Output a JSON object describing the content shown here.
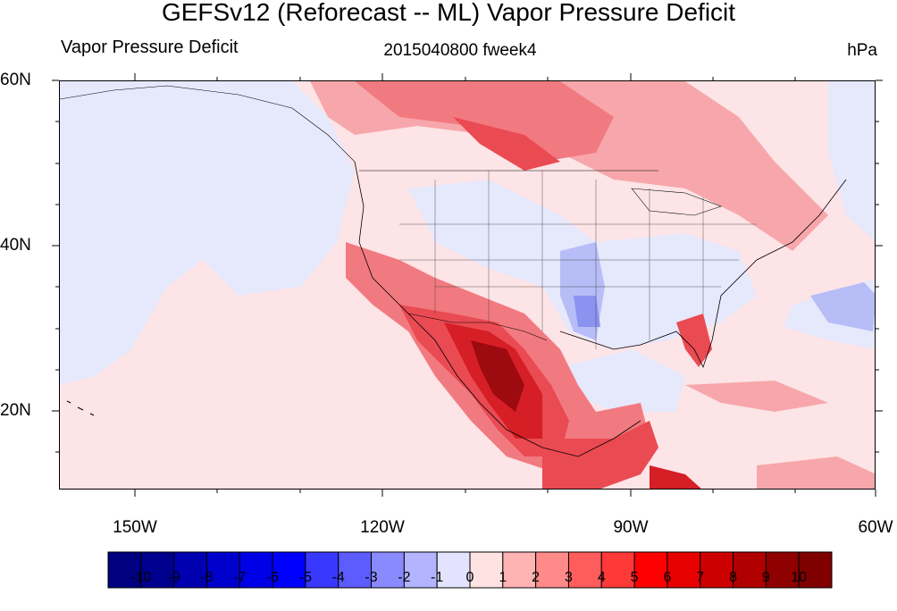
{
  "title": "GEFSv12 (Reforecast -- ML) Vapor Pressure Deficit",
  "subtitle_left": "Vapor Pressure Deficit",
  "subtitle_center": "2015040800 fweek4",
  "subtitle_right": "hPa",
  "lat_labels": [
    "60N",
    "40N",
    "20N"
  ],
  "lon_labels": [
    "150W",
    "120W",
    "90W",
    "60W"
  ],
  "colorbar": {
    "labels": [
      "-10",
      "-9",
      "-8",
      "-7",
      "-6",
      "-5",
      "-4",
      "-3",
      "-2",
      "-1",
      "0",
      "1",
      "2",
      "3",
      "4",
      "5",
      "6",
      "7",
      "8",
      "9",
      "10"
    ],
    "colors": [
      "#000080",
      "#00008f",
      "#0000b0",
      "#0000cc",
      "#0000e6",
      "#0000ff",
      "#3838ff",
      "#5c5cff",
      "#8a8aff",
      "#b3b3ff",
      "#e3e3ff",
      "#ffe3e3",
      "#ffb3b3",
      "#ff8a8a",
      "#ff5c5c",
      "#ff3838",
      "#ff0000",
      "#e60000",
      "#cc0000",
      "#b00000",
      "#8f0000",
      "#800000"
    ]
  }
}
